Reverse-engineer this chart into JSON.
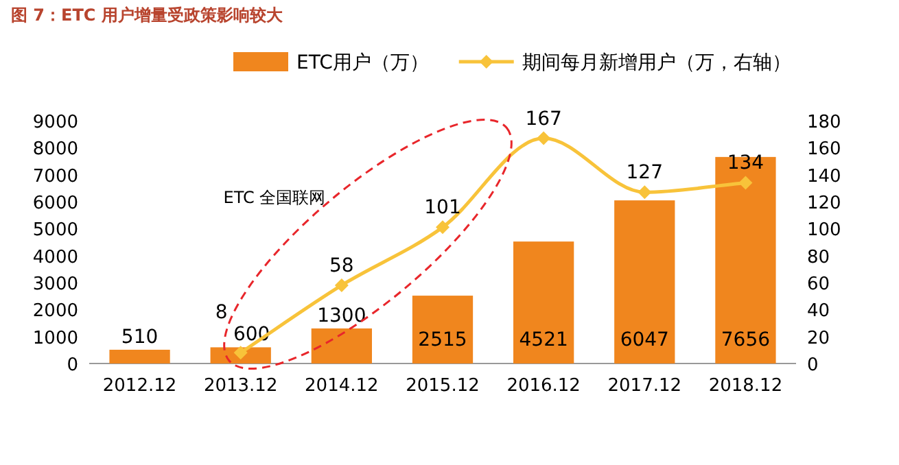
{
  "chart_data": {
    "type": "bar",
    "title": "图 7：ETC 用户增量受政策影响较大",
    "categories": [
      "2012.12",
      "2013.12",
      "2014.12",
      "2015.12",
      "2016.12",
      "2017.12",
      "2018.12"
    ],
    "series": [
      {
        "name": "ETC用户（万）",
        "color": "#f0861e",
        "values": [
          510,
          600,
          1300,
          2515,
          4521,
          6047,
          7656
        ]
      },
      {
        "name": "期间每月新增用户（万，右轴）",
        "type": "line",
        "axis": "y2",
        "color": "#f8c33a",
        "values": [
          null,
          8,
          58,
          101,
          167,
          127,
          134
        ]
      }
    ],
    "ylim": [
      0,
      9000
    ],
    "yticks": [
      0,
      1000,
      2000,
      3000,
      4000,
      5000,
      6000,
      7000,
      8000,
      9000
    ],
    "y2lim": [
      0,
      180
    ],
    "y2ticks": [
      0,
      20,
      40,
      60,
      80,
      100,
      120,
      140,
      160,
      180
    ],
    "data_labels": true,
    "marker": "diamond",
    "legend": "top",
    "grid": false,
    "annotations": [
      "ETC 全国联网"
    ]
  }
}
